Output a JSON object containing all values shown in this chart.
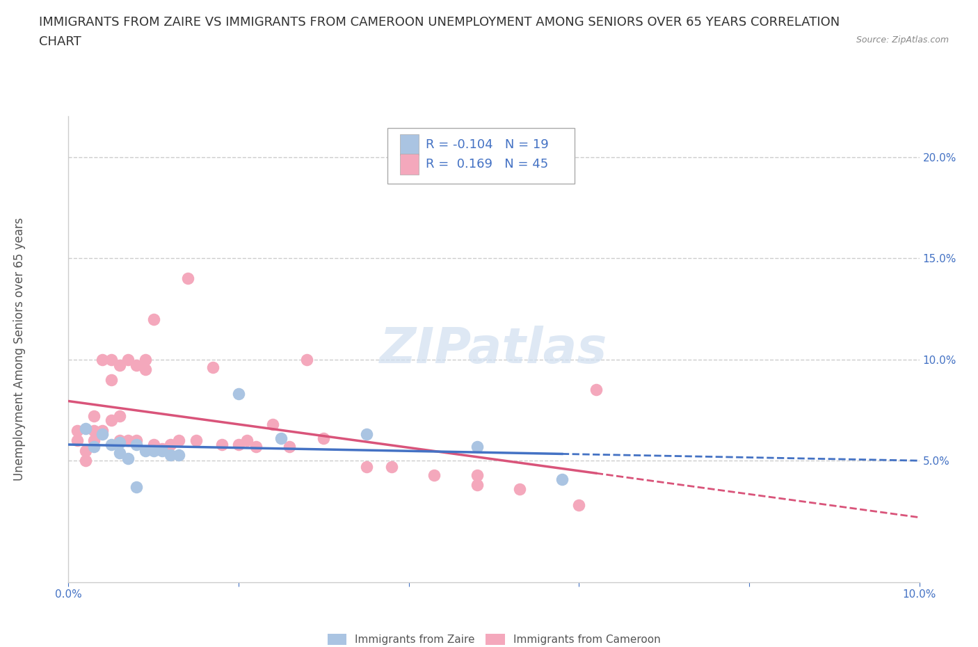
{
  "title_line1": "IMMIGRANTS FROM ZAIRE VS IMMIGRANTS FROM CAMEROON UNEMPLOYMENT AMONG SENIORS OVER 65 YEARS CORRELATION",
  "title_line2": "CHART",
  "source": "Source: ZipAtlas.com",
  "ylabel": "Unemployment Among Seniors over 65 years",
  "xlim": [
    0.0,
    0.1
  ],
  "ylim": [
    -0.01,
    0.22
  ],
  "xtick_vals": [
    0.0,
    0.02,
    0.04,
    0.06,
    0.08,
    0.1
  ],
  "xtick_labels": [
    "0.0%",
    "",
    "",
    "",
    "",
    "10.0%"
  ],
  "ytick_vals": [
    0.05,
    0.1,
    0.15,
    0.2
  ],
  "ytick_labels": [
    "5.0%",
    "10.0%",
    "15.0%",
    "20.0%"
  ],
  "zaire_color": "#aac4e2",
  "cameroon_color": "#f4a8bc",
  "zaire_R": -0.104,
  "zaire_N": 19,
  "cameroon_R": 0.169,
  "cameroon_N": 45,
  "zaire_line_color": "#4472c4",
  "cameroon_line_color": "#d9547a",
  "watermark": "ZIPatlas",
  "background_color": "#ffffff",
  "grid_color": "#cccccc",
  "tick_color": "#4472c4",
  "title_color": "#333333",
  "source_color": "#888888",
  "ylabel_color": "#555555",
  "title_fontsize": 13,
  "tick_fontsize": 11,
  "legend_fontsize": 13,
  "ylabel_fontsize": 12,
  "zaire_scatter": [
    [
      0.002,
      0.066
    ],
    [
      0.003,
      0.057
    ],
    [
      0.004,
      0.063
    ],
    [
      0.005,
      0.058
    ],
    [
      0.006,
      0.059
    ],
    [
      0.006,
      0.054
    ],
    [
      0.007,
      0.051
    ],
    [
      0.008,
      0.058
    ],
    [
      0.008,
      0.037
    ],
    [
      0.009,
      0.055
    ],
    [
      0.01,
      0.055
    ],
    [
      0.011,
      0.055
    ],
    [
      0.012,
      0.053
    ],
    [
      0.013,
      0.053
    ],
    [
      0.02,
      0.083
    ],
    [
      0.025,
      0.061
    ],
    [
      0.035,
      0.063
    ],
    [
      0.048,
      0.057
    ],
    [
      0.058,
      0.041
    ]
  ],
  "cameroon_scatter": [
    [
      0.001,
      0.065
    ],
    [
      0.001,
      0.06
    ],
    [
      0.002,
      0.05
    ],
    [
      0.002,
      0.055
    ],
    [
      0.003,
      0.072
    ],
    [
      0.003,
      0.065
    ],
    [
      0.003,
      0.06
    ],
    [
      0.004,
      0.1
    ],
    [
      0.004,
      0.065
    ],
    [
      0.005,
      0.1
    ],
    [
      0.005,
      0.09
    ],
    [
      0.005,
      0.07
    ],
    [
      0.006,
      0.097
    ],
    [
      0.006,
      0.072
    ],
    [
      0.006,
      0.06
    ],
    [
      0.007,
      0.1
    ],
    [
      0.007,
      0.06
    ],
    [
      0.008,
      0.097
    ],
    [
      0.008,
      0.06
    ],
    [
      0.009,
      0.1
    ],
    [
      0.009,
      0.095
    ],
    [
      0.01,
      0.12
    ],
    [
      0.01,
      0.058
    ],
    [
      0.011,
      0.056
    ],
    [
      0.012,
      0.058
    ],
    [
      0.013,
      0.06
    ],
    [
      0.014,
      0.14
    ],
    [
      0.015,
      0.06
    ],
    [
      0.017,
      0.096
    ],
    [
      0.018,
      0.058
    ],
    [
      0.02,
      0.058
    ],
    [
      0.021,
      0.06
    ],
    [
      0.022,
      0.057
    ],
    [
      0.024,
      0.068
    ],
    [
      0.026,
      0.057
    ],
    [
      0.028,
      0.1
    ],
    [
      0.03,
      0.061
    ],
    [
      0.035,
      0.047
    ],
    [
      0.038,
      0.047
    ],
    [
      0.043,
      0.043
    ],
    [
      0.048,
      0.043
    ],
    [
      0.048,
      0.038
    ],
    [
      0.053,
      0.036
    ],
    [
      0.06,
      0.028
    ],
    [
      0.062,
      0.085
    ]
  ]
}
